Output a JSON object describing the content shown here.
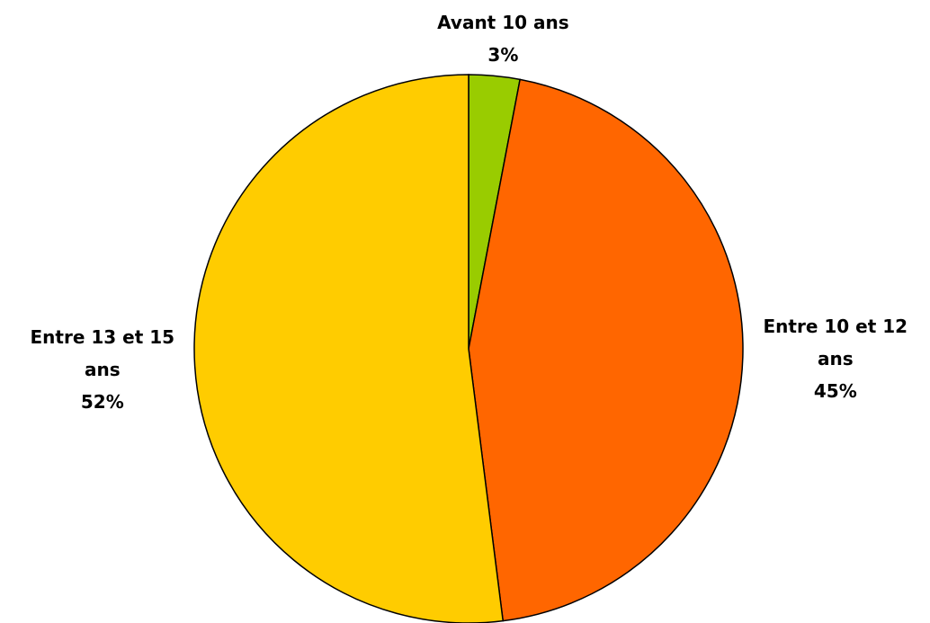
{
  "chart_data": {
    "type": "pie",
    "categories": [
      "Avant 10 ans",
      "Entre 10 et 12 ans",
      "Entre 13 et 15 ans"
    ],
    "values": [
      3,
      45,
      52
    ],
    "value_labels": [
      "3%",
      "45%",
      "52%"
    ],
    "colors": [
      "#99cc00",
      "#ff6600",
      "#ffcc00"
    ]
  }
}
